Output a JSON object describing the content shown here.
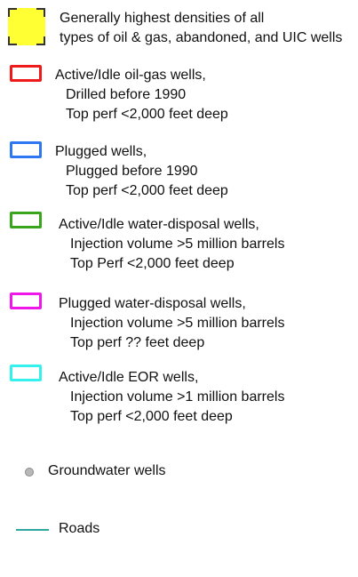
{
  "legend": {
    "colors": {
      "yellow": "#ffff33",
      "red": "#ef1b1b",
      "blue": "#2f77f2",
      "green": "#39a51d",
      "magenta": "#ef17ea",
      "cyan": "#35f1ee",
      "groundwater": "#b8b8b8",
      "roads": "#2ea7a1"
    },
    "items": [
      {
        "label_lines": [
          "Generally highest densities of all",
          "types of oil & gas, abandoned, and UIC wells"
        ]
      },
      {
        "label_lines": [
          "Active/Idle oil-gas wells,",
          "Drilled before 1990",
          "Top perf <2,000 feet deep"
        ]
      },
      {
        "label_lines": [
          "Plugged wells,",
          "Plugged before 1990",
          "Top perf <2,000 feet deep"
        ]
      },
      {
        "label_lines": [
          "Active/Idle water-disposal wells,",
          "Injection volume >5 million barrels",
          "Top Perf <2,000 feet deep"
        ]
      },
      {
        "label_lines": [
          "Plugged water-disposal wells,",
          "Injection volume >5 million barrels",
          "Top perf ?? feet deep"
        ]
      },
      {
        "label_lines": [
          "Active/Idle EOR wells,",
          "Injection volume >1 million barrels",
          "Top perf <2,000 feet deep"
        ]
      },
      {
        "label_lines": [
          "Groundwater wells"
        ]
      },
      {
        "label_lines": [
          "Roads"
        ]
      }
    ]
  }
}
